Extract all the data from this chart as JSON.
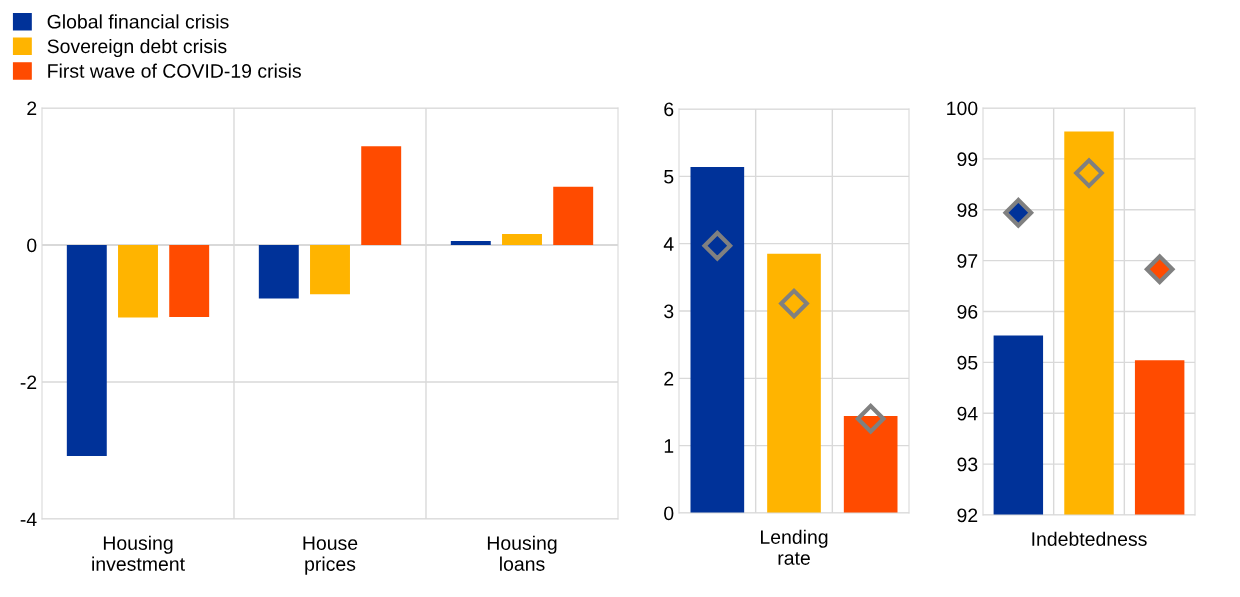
{
  "chart_data": [
    {
      "type": "bar",
      "categories": [
        "Housing\ninvestment",
        "House\nprices",
        "Housing\nloans"
      ],
      "ylim": [
        -4,
        2
      ],
      "yticks": [
        -4,
        -2,
        0,
        2
      ],
      "grid": true,
      "legend": "top left",
      "series": [
        {
          "name": "Global financial crisis",
          "color": "#003299",
          "values": [
            -3.08,
            -0.78,
            0.06
          ]
        },
        {
          "name": "Sovereign debt crisis",
          "color": "#ffb400",
          "values": [
            -1.06,
            -0.72,
            0.16
          ]
        },
        {
          "name": "First wave of COVID-19 crisis",
          "color": "#ff4b00",
          "values": [
            -1.05,
            1.44,
            0.85
          ]
        }
      ]
    },
    {
      "type": "bar",
      "categories": [
        null,
        "Lending\nrate",
        null
      ],
      "ylim": [
        0,
        6
      ],
      "yticks": [
        0,
        1,
        2,
        3,
        4,
        5,
        6
      ],
      "grid": true,
      "marker": "diamond",
      "series": [
        {
          "colors": [
            "#003299",
            "#ffb400",
            "#ff4b00"
          ],
          "values": [
            5.14,
            3.85,
            1.44
          ]
        },
        {
          "type": "scatter",
          "color": "#808080",
          "values": [
            3.97,
            3.11,
            1.4
          ],
          "colors": [
            null,
            null,
            null
          ]
        }
      ]
    },
    {
      "type": "bar",
      "categories": [
        null,
        "Indebtedness",
        null
      ],
      "ylim": [
        92,
        100
      ],
      "yticks": [
        92,
        93,
        94,
        95,
        96,
        97,
        98,
        99,
        100
      ],
      "grid": true,
      "marker": "diamond",
      "series": [
        {
          "colors": [
            "#003299",
            "#ffb400",
            "#ff4b00"
          ],
          "values": [
            95.53,
            99.54,
            95.04
          ]
        },
        {
          "type": "scatter",
          "color": "#808080",
          "values": [
            97.94,
            98.72,
            96.83
          ],
          "colors": [
            "#003299",
            "#ffb400",
            "#ff4b00"
          ]
        }
      ]
    }
  ]
}
